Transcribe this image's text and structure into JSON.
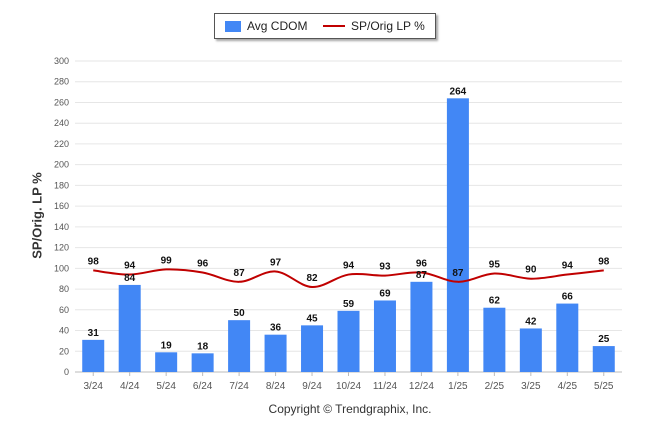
{
  "legend": {
    "bar_label": "Avg CDOM",
    "line_label": "SP/Orig LP %"
  },
  "footer": "Copyright © Trendgraphix, Inc.",
  "colors": {
    "bar": "#4287f5",
    "line": "#c00000",
    "grid": "#e6e6e6",
    "axis_text": "#555555"
  },
  "chart_data": {
    "type": "bar",
    "title": "",
    "xlabel": "",
    "ylabel": "SP/Orig. LP %",
    "ylim": [
      0,
      300
    ],
    "yticks": [
      0,
      20,
      40,
      60,
      80,
      100,
      120,
      140,
      160,
      180,
      200,
      220,
      240,
      260,
      280,
      300
    ],
    "grid": true,
    "legend_position": "top-center",
    "categories": [
      "3/24",
      "4/24",
      "5/24",
      "6/24",
      "7/24",
      "8/24",
      "9/24",
      "10/24",
      "11/24",
      "12/24",
      "1/25",
      "2/25",
      "3/25",
      "4/25",
      "5/25"
    ],
    "series": [
      {
        "name": "Avg CDOM",
        "type": "bar",
        "values": [
          31,
          84,
          19,
          18,
          50,
          36,
          45,
          59,
          69,
          87,
          264,
          62,
          42,
          66,
          25
        ]
      },
      {
        "name": "SP/Orig LP %",
        "type": "line",
        "values": [
          98,
          94,
          99,
          96,
          87,
          97,
          82,
          94,
          93,
          96,
          87,
          95,
          90,
          94,
          98
        ]
      }
    ]
  }
}
